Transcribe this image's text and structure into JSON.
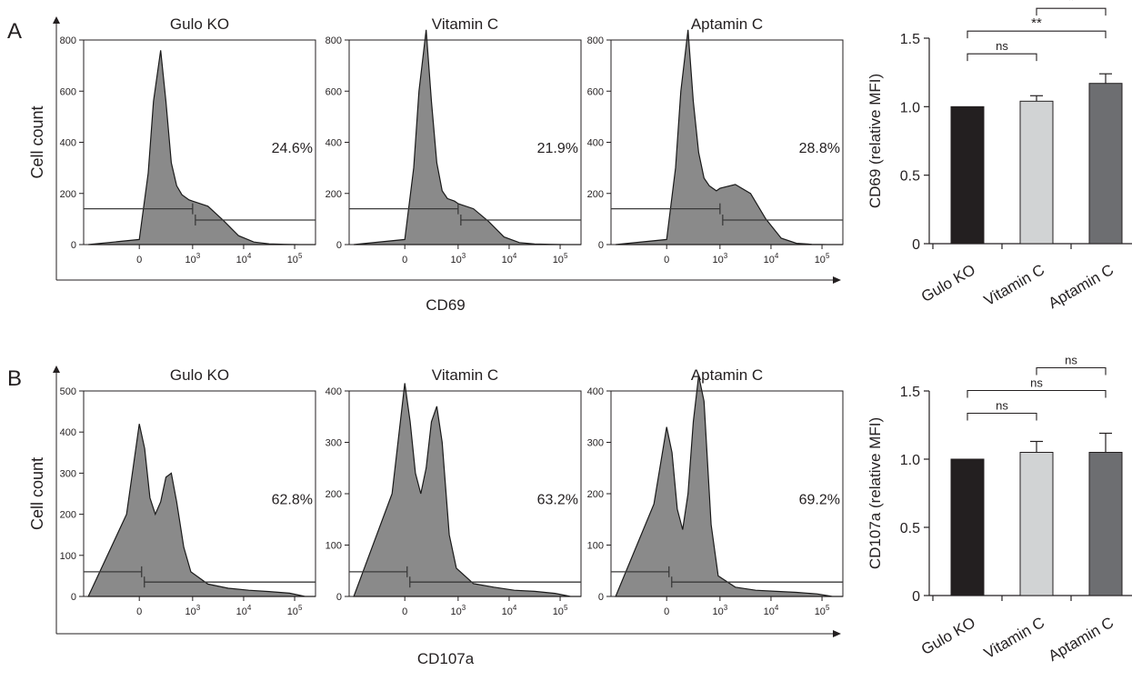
{
  "chart_data": [
    {
      "type": "area",
      "panel": "A",
      "title": "Gulo KO",
      "ylabel": "Cell count",
      "xlabel": "CD69",
      "ylim": [
        0,
        800
      ],
      "y_ticks": [
        "0",
        "200",
        "400",
        "600",
        "800"
      ],
      "x_ticks": [
        "0",
        "10^3",
        "10^4",
        "10^5"
      ],
      "gate_percent": "24.6%",
      "x_decades": [
        -0.8,
        0.0,
        0.5,
        0.8,
        1.2,
        1.5,
        1.8,
        2.1,
        2.4,
        2.8,
        3.0,
        3.3,
        3.6,
        3.9,
        4.2,
        4.5,
        4.8,
        5.1,
        5.4
      ],
      "counts": [
        0,
        20,
        280,
        560,
        760,
        560,
        320,
        230,
        195,
        175,
        170,
        150,
        95,
        35,
        10,
        3,
        1,
        0,
        0
      ]
    },
    {
      "type": "area",
      "panel": "A",
      "title": "Vitamin C",
      "ylim": [
        0,
        800
      ],
      "y_ticks": [
        "0",
        "200",
        "400",
        "600",
        "800"
      ],
      "x_ticks": [
        "0",
        "10^3",
        "10^4",
        "10^5"
      ],
      "gate_percent": "21.9%",
      "x_decades": [
        -0.8,
        0.0,
        0.5,
        0.8,
        1.2,
        1.5,
        1.8,
        2.1,
        2.4,
        2.8,
        3.0,
        3.3,
        3.6,
        3.9,
        4.2,
        4.5,
        4.8,
        5.1,
        5.4
      ],
      "counts": [
        0,
        20,
        300,
        600,
        840,
        560,
        320,
        210,
        180,
        170,
        160,
        140,
        90,
        30,
        8,
        2,
        1,
        0,
        0
      ]
    },
    {
      "type": "area",
      "panel": "A",
      "title": "Aptamin C",
      "ylim": [
        0,
        800
      ],
      "y_ticks": [
        "0",
        "200",
        "400",
        "600",
        "800"
      ],
      "x_ticks": [
        "0",
        "10^3",
        "10^4",
        "10^5"
      ],
      "gate_percent": "28.8%",
      "x_decades": [
        -0.8,
        0.0,
        0.5,
        0.8,
        1.2,
        1.5,
        1.8,
        2.1,
        2.4,
        2.8,
        3.0,
        3.3,
        3.6,
        3.9,
        4.2,
        4.5,
        4.8,
        5.1,
        5.4
      ],
      "counts": [
        0,
        20,
        300,
        600,
        840,
        560,
        360,
        260,
        230,
        210,
        220,
        235,
        200,
        100,
        25,
        5,
        1,
        0,
        0
      ]
    },
    {
      "type": "bar",
      "panel": "A",
      "categories": [
        "Gulo KO",
        "Vitamin C",
        "Aptamin C"
      ],
      "values": [
        1.0,
        1.04,
        1.17
      ],
      "errors": [
        0.0,
        0.04,
        0.07
      ],
      "colors": [
        "#231f20",
        "#d1d3d4",
        "#6d6e71"
      ],
      "ylabel": "CD69 (relative MFI)",
      "ylim": [
        0,
        1.5
      ],
      "y_ticks": [
        "0",
        "0.5",
        "1.0",
        "1.5"
      ],
      "significance": [
        {
          "from": 0,
          "to": 1,
          "label": "ns"
        },
        {
          "from": 0,
          "to": 2,
          "label": "**"
        },
        {
          "from": 1,
          "to": 2,
          "label": "*"
        }
      ]
    },
    {
      "type": "area",
      "panel": "B",
      "title": "Gulo KO",
      "ylabel": "Cell count",
      "xlabel": "CD107a",
      "ylim": [
        0,
        500
      ],
      "y_ticks": [
        "0",
        "100",
        "200",
        "300",
        "400",
        "500"
      ],
      "x_ticks": [
        "0",
        "10^3",
        "10^4",
        "10^5"
      ],
      "gate_percent": "62.8%",
      "x_decades": [
        -0.8,
        -0.2,
        0.0,
        0.3,
        0.6,
        0.9,
        1.2,
        1.5,
        1.8,
        2.1,
        2.5,
        2.9,
        3.3,
        3.7,
        4.1,
        4.5,
        4.9,
        5.2,
        5.4
      ],
      "counts": [
        0,
        200,
        420,
        360,
        240,
        200,
        230,
        290,
        300,
        230,
        120,
        60,
        30,
        20,
        15,
        12,
        8,
        0,
        0
      ]
    },
    {
      "type": "area",
      "panel": "B",
      "title": "Vitamin C",
      "ylim": [
        0,
        400
      ],
      "y_ticks": [
        "0",
        "100",
        "200",
        "300",
        "400"
      ],
      "x_ticks": [
        "0",
        "10^3",
        "10^4",
        "10^5"
      ],
      "gate_percent": "63.2%",
      "x_decades": [
        -0.8,
        -0.2,
        0.0,
        0.3,
        0.6,
        0.9,
        1.2,
        1.5,
        1.8,
        2.1,
        2.5,
        2.9,
        3.3,
        3.7,
        4.1,
        4.5,
        4.9,
        5.2,
        5.4
      ],
      "counts": [
        0,
        200,
        415,
        340,
        240,
        200,
        250,
        340,
        370,
        300,
        120,
        55,
        25,
        18,
        12,
        10,
        6,
        0,
        0
      ]
    },
    {
      "type": "area",
      "panel": "B",
      "title": "Aptamin C",
      "ylim": [
        0,
        400
      ],
      "y_ticks": [
        "0",
        "100",
        "200",
        "300",
        "400"
      ],
      "x_ticks": [
        "0",
        "10^3",
        "10^4",
        "10^5"
      ],
      "gate_percent": "69.2%",
      "x_decades": [
        -0.8,
        -0.2,
        0.0,
        0.3,
        0.6,
        0.9,
        1.2,
        1.5,
        1.8,
        2.1,
        2.5,
        2.9,
        3.3,
        3.7,
        4.1,
        4.5,
        4.9,
        5.2,
        5.4
      ],
      "counts": [
        0,
        180,
        330,
        280,
        170,
        130,
        200,
        340,
        430,
        380,
        140,
        40,
        18,
        12,
        10,
        8,
        5,
        0,
        0
      ]
    },
    {
      "type": "bar",
      "panel": "B",
      "categories": [
        "Gulo KO",
        "Vitamin C",
        "Aptamin C"
      ],
      "values": [
        1.0,
        1.05,
        1.05
      ],
      "errors": [
        0.0,
        0.08,
        0.14
      ],
      "colors": [
        "#231f20",
        "#d1d3d4",
        "#6d6e71"
      ],
      "ylabel": "CD107a (relative MFI)",
      "ylim": [
        0,
        1.5
      ],
      "y_ticks": [
        "0",
        "0.5",
        "1.0",
        "1.5"
      ],
      "significance": [
        {
          "from": 0,
          "to": 1,
          "label": "ns"
        },
        {
          "from": 0,
          "to": 2,
          "label": "ns"
        },
        {
          "from": 1,
          "to": 2,
          "label": "ns"
        }
      ]
    }
  ],
  "panel_labels": [
    "A",
    "B"
  ],
  "colors": {
    "histogram_fill": "#8a8a8a",
    "axis": "#231f20"
  }
}
